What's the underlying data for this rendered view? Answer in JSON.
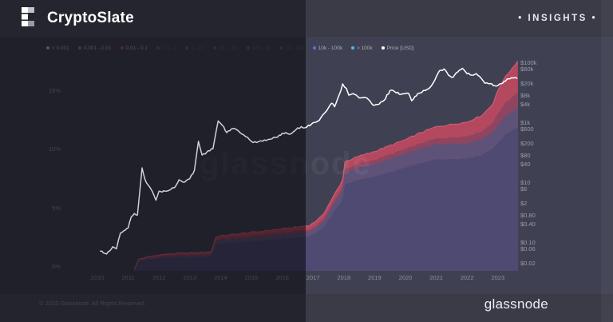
{
  "header": {
    "brand": "CryptoSlate",
    "badge": "• INSIGHTS •"
  },
  "footer": {
    "copyright": "© 2023 Glassnode. All Rights Reserved.",
    "brand": "glassnode"
  },
  "watermark": "glassnode",
  "colors": {
    "card_bg_right": "#3f4152",
    "card_bg_left_overlay": "rgba(5,5,10,0.55)",
    "band_red": "#b4485f",
    "band_red_crest": "#c75d75",
    "band_dark_red": "#8d4560",
    "band_purple_mid": "#5f5278",
    "band_purple_bottom": "#4e4a72",
    "price_line_right": "#ffffff",
    "price_line_left": "#d0d0d8"
  },
  "chart_data": {
    "type": "area+line",
    "legend_position": "top",
    "grid": false,
    "legend": [
      {
        "label": "< 0.001",
        "color": "#cfc355",
        "active": true
      },
      {
        "label": "0.001 - 0.01",
        "color": "#e2525f",
        "active": true
      },
      {
        "label": "0.01 - 0.1",
        "color": "#c04767",
        "active": true
      },
      {
        "label": "0.1 - 1",
        "color": "#5f5f6b",
        "active": false
      },
      {
        "label": "1 - 10",
        "color": "#5f5f6b",
        "active": false
      },
      {
        "label": "10 - 100",
        "color": "#5f5f6b",
        "active": false
      },
      {
        "label": "100 - 1k",
        "color": "#5f5f6b",
        "active": false
      },
      {
        "label": "1k - 10k",
        "color": "#5f5f6b",
        "active": false
      },
      {
        "label": "10k - 100k",
        "color": "#5b6ee0",
        "active": true
      },
      {
        "label": "> 100k",
        "color": "#55b9e9",
        "active": true
      },
      {
        "label": "Price [USD]",
        "color": "#ffffff",
        "active": true
      }
    ],
    "x_axis": {
      "years": [
        2010,
        2011,
        2012,
        2013,
        2014,
        2015,
        2016,
        2017,
        2018,
        2019,
        2020,
        2021,
        2022,
        2023
      ]
    },
    "y_axis_left": {
      "ticks": [
        "0%",
        "5%",
        "10%",
        "15%"
      ],
      "values": [
        0,
        5,
        10,
        15
      ],
      "unit": "percent_of_supply"
    },
    "y_axis_right": {
      "scale": "log",
      "ticks": [
        "$100k",
        "$60k",
        "$20k",
        "$8k",
        "$4k",
        "$1k",
        "$600",
        "$200",
        "$80",
        "$40",
        "$10",
        "$6",
        "$2",
        "$0.80",
        "$0.40",
        "$0.10",
        "$0.06",
        "$0.02"
      ],
      "values": [
        100000,
        60000,
        20000,
        8000,
        4000,
        1000,
        600,
        200,
        80,
        40,
        10,
        6,
        2,
        0.8,
        0.4,
        0.1,
        0.06,
        0.02
      ]
    },
    "price_series": {
      "name": "Price [USD]",
      "t": [
        2010.1,
        2010.3,
        2010.5,
        2010.62,
        2010.75,
        2010.9,
        2011.0,
        2011.1,
        2011.2,
        2011.3,
        2011.45,
        2011.55,
        2011.65,
        2011.78,
        2011.9,
        2012.0,
        2012.2,
        2012.5,
        2012.65,
        2012.78,
        2013.0,
        2013.15,
        2013.28,
        2013.4,
        2013.55,
        2013.75,
        2013.92,
        2014.05,
        2014.2,
        2014.35,
        2014.5,
        2014.75,
        2015.05,
        2015.3,
        2015.6,
        2015.85,
        2016.0,
        2016.3,
        2016.5,
        2016.8,
        2017.0,
        2017.2,
        2017.45,
        2017.6,
        2017.7,
        2017.9,
        2017.96,
        2018.08,
        2018.16,
        2018.3,
        2018.5,
        2018.75,
        2018.95,
        2019.1,
        2019.3,
        2019.5,
        2019.65,
        2019.85,
        2020.1,
        2020.2,
        2020.4,
        2020.65,
        2020.85,
        2021.0,
        2021.1,
        2021.25,
        2021.4,
        2021.55,
        2021.7,
        2021.85,
        2021.95,
        2022.1,
        2022.3,
        2022.45,
        2022.58,
        2022.75,
        2022.9,
        2023.0,
        2023.2,
        2023.35,
        2023.5,
        2023.62
      ],
      "usd": [
        0.05,
        0.04,
        0.07,
        0.06,
        0.2,
        0.25,
        0.3,
        0.7,
        0.9,
        0.8,
        30,
        12,
        8,
        5,
        2.5,
        5,
        5,
        6.5,
        12,
        10,
        13,
        25,
        230,
        80,
        100,
        130,
        1100,
        800,
        450,
        600,
        580,
        380,
        210,
        240,
        270,
        320,
        430,
        420,
        650,
        700,
        960,
        1150,
        2500,
        4300,
        3300,
        11000,
        19000,
        13500,
        8000,
        9000,
        6500,
        6400,
        3700,
        3900,
        5300,
        11500,
        10500,
        8500,
        9200,
        5200,
        9000,
        11500,
        17000,
        33000,
        52000,
        60000,
        37000,
        32000,
        48000,
        63000,
        48000,
        38000,
        42000,
        30000,
        20000,
        19500,
        16500,
        16800,
        23000,
        28000,
        30000,
        29500
      ]
    },
    "supply_bands": {
      "unit": "percent_of_supply_stacked",
      "t": [
        2011.2,
        2011.35,
        2012.0,
        2012.5,
        2013.0,
        2013.7,
        2013.85,
        2014.3,
        2015.0,
        2016.0,
        2016.9,
        2017.3,
        2017.75,
        2017.95,
        2018.02,
        2018.5,
        2019.0,
        2019.5,
        2020.0,
        2020.5,
        2021.0,
        2021.5,
        2022.0,
        2022.5,
        2022.85,
        2023.0,
        2023.2,
        2023.65
      ],
      "total_pct": [
        0.05,
        0.95,
        1.3,
        1.4,
        1.45,
        1.55,
        2.85,
        3.0,
        3.2,
        3.5,
        3.8,
        4.6,
        6.7,
        7.5,
        9.2,
        9.7,
        10.1,
        10.6,
        11.1,
        11.7,
        12.2,
        12.4,
        12.6,
        13.2,
        14.2,
        15.3,
        16.3,
        17.8
      ],
      "red_pct": [
        0.02,
        0.08,
        0.12,
        0.14,
        0.15,
        0.18,
        0.22,
        0.25,
        0.28,
        0.32,
        0.35,
        0.4,
        0.5,
        0.55,
        0.6,
        0.65,
        0.7,
        0.75,
        0.8,
        0.9,
        1.0,
        1.1,
        1.2,
        1.35,
        1.6,
        2.0,
        2.2,
        2.6
      ],
      "darkred_pct": [
        0.01,
        0.04,
        0.06,
        0.07,
        0.08,
        0.09,
        0.11,
        0.13,
        0.14,
        0.16,
        0.18,
        0.2,
        0.25,
        0.28,
        0.3,
        0.33,
        0.35,
        0.38,
        0.4,
        0.45,
        0.5,
        0.55,
        0.6,
        0.68,
        0.8,
        1.0,
        1.1,
        1.3
      ],
      "purple_split_bottom": 0.88,
      "purple_split_mid": 0.12
    }
  }
}
